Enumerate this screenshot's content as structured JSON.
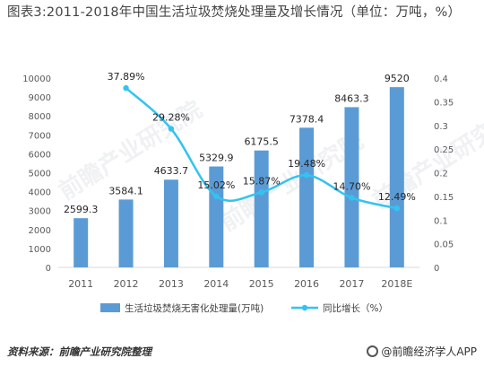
{
  "chart_data": {
    "type": "bar",
    "title": "图表3:2011-2018年中国生活垃圾焚烧处理量及增长情况（单位：万吨，%）",
    "categories": [
      "2011",
      "2012",
      "2013",
      "2014",
      "2015",
      "2016",
      "2017",
      "2018E"
    ],
    "series": [
      {
        "name": "生活垃圾焚烧无害化处理量(万吨)",
        "type": "bar",
        "axis": "left",
        "values": [
          2599.3,
          3584.1,
          4633.7,
          5329.9,
          6175.5,
          7378.4,
          8463.3,
          9520
        ],
        "value_labels": [
          "2599.3",
          "3584.1",
          "4633.7",
          "5329.9",
          "6175.5",
          "7378.4",
          "8463.3",
          "9520"
        ],
        "color": "#5b9bd5"
      },
      {
        "name": "同比增长（%）",
        "type": "line",
        "axis": "right",
        "values": [
          null,
          0.3789,
          0.2928,
          0.1502,
          0.1587,
          0.1948,
          0.147,
          0.1249
        ],
        "value_labels": [
          "",
          "37.89%",
          "29.28%",
          "15.02%",
          "15.87%",
          "19.48%",
          "14.70%",
          "12.49%"
        ],
        "color": "#33c3f0"
      }
    ],
    "y_left": {
      "ylim": [
        0,
        10000
      ],
      "ticks": [
        "0",
        "1000",
        "2000",
        "3000",
        "4000",
        "5000",
        "6000",
        "7000",
        "8000",
        "9000",
        "10000"
      ]
    },
    "y_right": {
      "ylim": [
        0,
        0.4
      ],
      "ticks": [
        "0",
        "0.05",
        "0.1",
        "0.15",
        "0.2",
        "0.25",
        "0.3",
        "0.35",
        "0.4"
      ]
    },
    "grid": false,
    "legend": "bottom"
  },
  "footer": {
    "source": "资料来源：前瞻产业研究院整理",
    "brand": "@前瞻经济学人APP"
  },
  "watermark": "前瞻产业研究院"
}
